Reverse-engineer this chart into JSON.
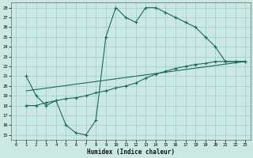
{
  "xlabel": "Humidex (Indice chaleur)",
  "background_color": "#cce8e4",
  "grid_color": "#99cccc",
  "line_color": "#1a6b5a",
  "xlim": [
    -0.5,
    23.5
  ],
  "ylim": [
    14.5,
    28.5
  ],
  "xticks": [
    0,
    1,
    2,
    3,
    4,
    5,
    6,
    7,
    8,
    9,
    10,
    11,
    12,
    13,
    14,
    15,
    16,
    17,
    18,
    19,
    20,
    21,
    22,
    23
  ],
  "yticks": [
    15,
    16,
    17,
    18,
    19,
    20,
    21,
    22,
    23,
    24,
    25,
    26,
    27,
    28
  ],
  "series1_x": [
    1,
    2,
    3,
    4,
    5,
    6,
    7,
    8,
    9,
    10,
    11,
    12,
    13,
    14,
    15,
    16,
    17,
    18,
    19,
    20,
    21,
    22,
    23
  ],
  "series1_y": [
    21,
    19,
    18,
    18.5,
    16,
    15.2,
    15,
    16.5,
    25,
    28,
    27,
    26.5,
    28,
    28,
    27.5,
    27,
    26.5,
    26,
    25,
    24,
    22.5,
    22.5,
    22.5
  ],
  "series2_x": [
    1,
    2,
    3,
    4,
    5,
    6,
    7,
    8,
    9,
    10,
    11,
    12,
    13,
    14,
    15,
    16,
    17,
    18,
    19,
    20,
    21,
    22,
    23
  ],
  "series2_y": [
    18,
    18,
    18.3,
    18.5,
    18.7,
    18.8,
    19.0,
    19.3,
    19.5,
    19.8,
    20.0,
    20.3,
    20.8,
    21.2,
    21.5,
    21.8,
    22.0,
    22.2,
    22.3,
    22.5,
    22.5,
    22.5,
    22.5
  ],
  "series3_x": [
    1,
    23
  ],
  "series3_y": [
    19.5,
    22.5
  ]
}
